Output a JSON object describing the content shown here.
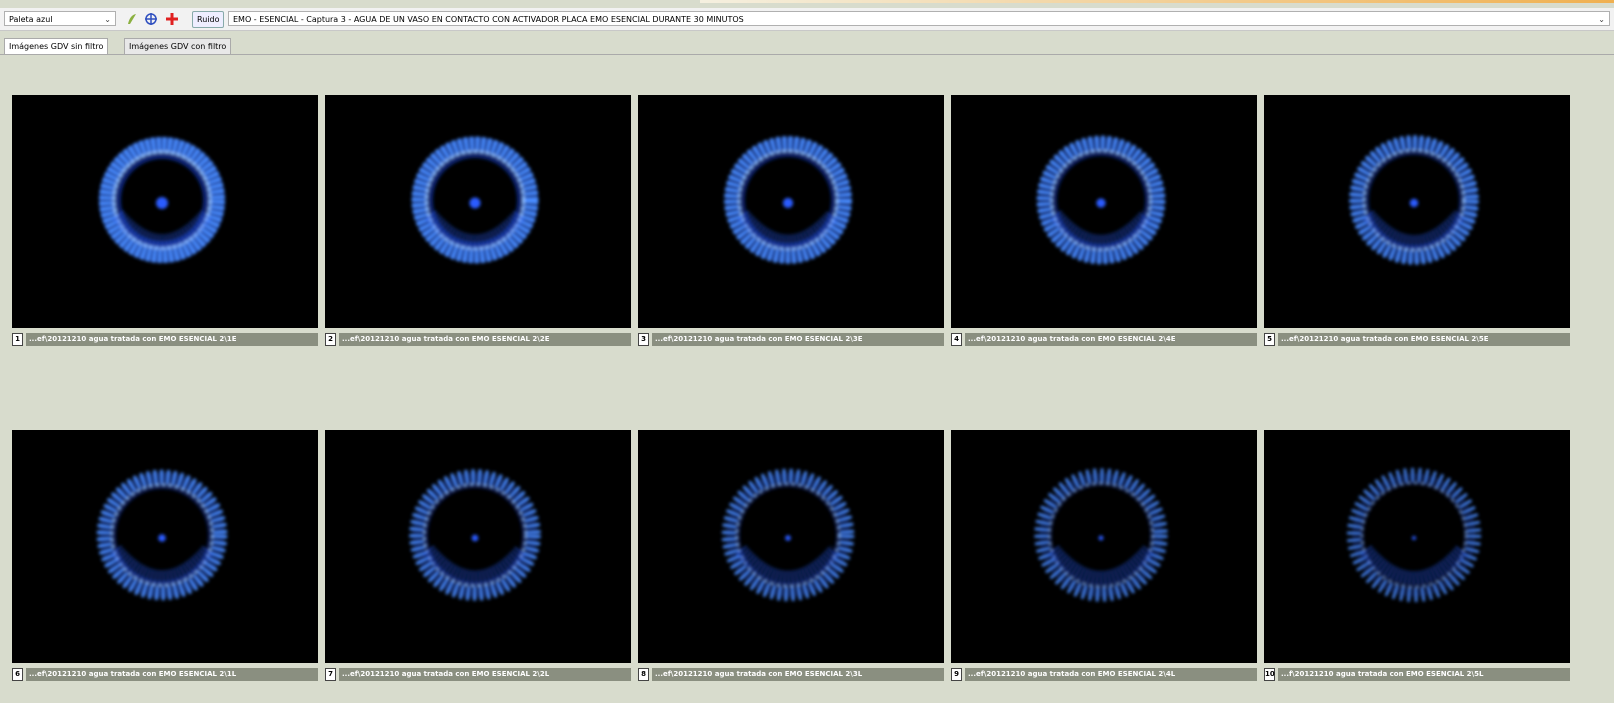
{
  "toolbar": {
    "palette": "Paleta azul",
    "noise_button": "Ruido",
    "title": "EMO - ESENCIAL - Captura 3 -  AGUA DE UN VASO EN CONTACTO CON ACTIVADOR PLACA EMO ESENCIAL DURANTE 30 MINUTOS"
  },
  "tabs": [
    "Imágenes GDV sin filtro",
    "Imágenes GDV con filtro"
  ],
  "images": [
    {
      "number": "1",
      "caption": "...ef\\20121210 agua tratada con EMO ESENCIAL 2\\1E"
    },
    {
      "number": "2",
      "caption": "...ef\\20121210 agua tratada con EMO ESENCIAL 2\\2E"
    },
    {
      "number": "3",
      "caption": "...ef\\20121210 agua tratada con EMO ESENCIAL 2\\3E"
    },
    {
      "number": "4",
      "caption": "...ef\\20121210 agua tratada con EMO ESENCIAL 2\\4E"
    },
    {
      "number": "5",
      "caption": "...ef\\20121210 agua tratada con EMO ESENCIAL 2\\5E"
    },
    {
      "number": "6",
      "caption": "...ef\\20121210 agua tratada con EMO ESENCIAL 2\\1L"
    },
    {
      "number": "7",
      "caption": "...ef\\20121210 agua tratada con EMO ESENCIAL 2\\2L"
    },
    {
      "number": "8",
      "caption": "...ef\\20121210 agua tratada con EMO ESENCIAL 2\\3L"
    },
    {
      "number": "9",
      "caption": "...ef\\20121210 agua tratada con EMO ESENCIAL 2\\4L"
    },
    {
      "number": "10",
      "caption": "...f\\20121210 agua tratada con EMO ESENCIAL 2\\5L"
    }
  ]
}
